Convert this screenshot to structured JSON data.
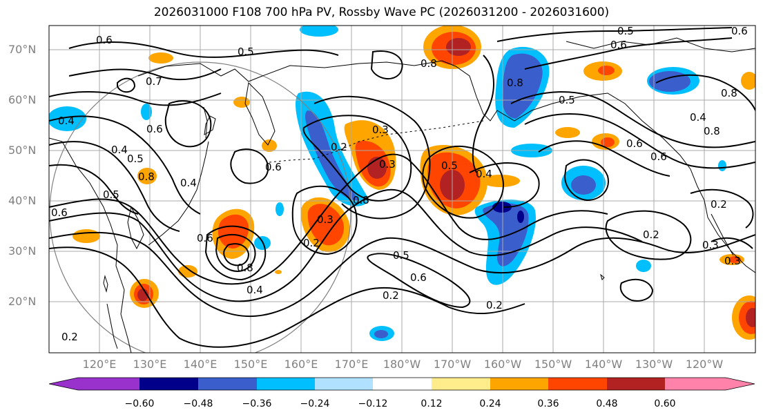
{
  "title": "2026031000 F108 700 hPa PV, Rossby Wave PC (2026031200 - 2026031600)",
  "lat_labels": [
    "70°N",
    "60°N",
    "50°N",
    "40°N",
    "30°N",
    "20°N"
  ],
  "lon_labels": [
    "120°E",
    "130°E",
    "140°E",
    "150°E",
    "160°E",
    "170°E",
    "180°W",
    "170°W",
    "160°W",
    "150°W",
    "140°W",
    "130°W",
    "120°W"
  ],
  "colorbar": {
    "ticks": [
      "−0.60",
      "−0.48",
      "−0.36",
      "−0.24",
      "−0.12",
      "0.12",
      "0.24",
      "0.36",
      "0.48",
      "0.60"
    ],
    "colors": [
      "#9932cc",
      "#00008b",
      "#3a5fcd",
      "#00bfff",
      "#b0e2ff",
      "#ffffff",
      "#ffec8b",
      "#ffa500",
      "#ff4500",
      "#b22222",
      "#ff82ab"
    ]
  },
  "contour_labels": [
    "0.6",
    "0.5",
    "0.6",
    "0.5",
    "0.6",
    "0.8",
    "0.8",
    "0.4",
    "0.7",
    "0.6",
    "0.4",
    "0.8",
    "0.2",
    "0.3",
    "0.5",
    "0.4",
    "0.6",
    "0.8",
    "0.5",
    "0.4",
    "0.6",
    "0.6",
    "0.8",
    "0.3",
    "0.2",
    "0.6",
    "0.8",
    "0.4",
    "0.2",
    "0.5",
    "0.6",
    "0.3",
    "0.2",
    "0.2",
    "0.3",
    "0.5",
    "0.8",
    "0.4",
    "0.2",
    "0.3",
    "0.6",
    "0.5",
    "0.2"
  ]
}
